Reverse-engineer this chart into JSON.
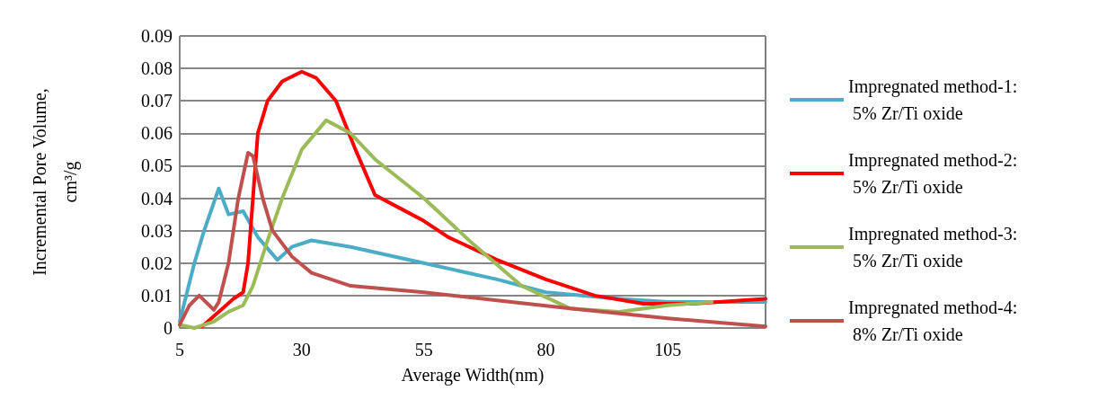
{
  "chart_data": {
    "type": "line",
    "xlabel": "Average Width(nm)",
    "ylabel": "Incremental Pore Volume, cm³/g",
    "xlim": [
      5,
      125
    ],
    "xticks": [
      5,
      30,
      55,
      80,
      105
    ],
    "ylim": [
      0,
      0.09
    ],
    "yticks": [
      0,
      0.01,
      0.02,
      0.03,
      0.04,
      0.05,
      0.06,
      0.07,
      0.08,
      0.09
    ],
    "grid": "y",
    "legend": "right",
    "marker": "none",
    "line_style": "solid",
    "series": [
      {
        "name": "Impregnated method-1: 5% Zr/Ti oxide",
        "color": "#4bacc6",
        "x": [
          5,
          8,
          10,
          13,
          15,
          18,
          21,
          25,
          28,
          32,
          40,
          55,
          70,
          80,
          95,
          105,
          125
        ],
        "values": [
          0.002,
          0.02,
          0.03,
          0.043,
          0.035,
          0.036,
          0.028,
          0.021,
          0.025,
          0.027,
          0.025,
          0.02,
          0.015,
          0.011,
          0.009,
          0.008,
          0.008
        ]
      },
      {
        "name": "Impregnated method-2: 5% Zr/Ti oxide",
        "color": "#ff0000",
        "x": [
          9.6,
          13,
          16,
          18,
          19,
          20,
          21,
          23,
          26,
          30,
          33,
          37,
          41,
          45,
          50,
          55,
          60,
          70,
          80,
          90,
          100,
          110,
          125
        ],
        "values": [
          0.0005,
          0.005,
          0.009,
          0.011,
          0.02,
          0.04,
          0.06,
          0.07,
          0.076,
          0.079,
          0.077,
          0.07,
          0.055,
          0.041,
          0.037,
          0.033,
          0.028,
          0.021,
          0.015,
          0.01,
          0.0075,
          0.0075,
          0.009
        ]
      },
      {
        "name": "Impregnated method-3: 5% Zr/Ti oxide",
        "color": "#9bbb59",
        "x": [
          5,
          8,
          12,
          15,
          18,
          20,
          23,
          26,
          30,
          35,
          40,
          45,
          55,
          65,
          75,
          85,
          95,
          105,
          114
        ],
        "values": [
          0.001,
          0,
          0.002,
          0.005,
          0.007,
          0.013,
          0.027,
          0.04,
          0.055,
          0.064,
          0.06,
          0.052,
          0.04,
          0.026,
          0.013,
          0.006,
          0.005,
          0.007,
          0.008
        ]
      },
      {
        "name": "Impregnated method-4: 8% Zr/Ti oxide",
        "color": "#c0504d",
        "x": [
          5,
          7,
          9,
          12,
          13,
          15,
          17,
          19,
          20,
          22,
          24,
          28,
          32,
          40,
          55,
          70,
          85,
          105,
          125
        ],
        "values": [
          0.001,
          0.007,
          0.01,
          0.0056,
          0.008,
          0.02,
          0.04,
          0.054,
          0.053,
          0.04,
          0.03,
          0.022,
          0.017,
          0.013,
          0.011,
          0.0085,
          0.006,
          0.003,
          0.0005
        ]
      }
    ]
  }
}
